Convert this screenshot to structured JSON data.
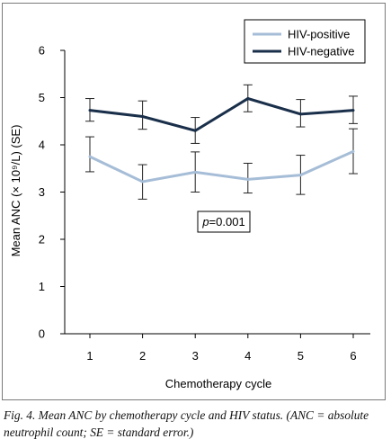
{
  "caption": "Fig. 4. Mean ANC by chemotherapy cycle and HIV status. (ANC = absolute neutrophil count; SE = standard error.)",
  "colors": {
    "hiv_positive": "#a6bdd7",
    "hiv_negative": "#1a2f4a",
    "axis": "#000000",
    "frame": "#7a7a7a"
  },
  "chart_data": {
    "type": "line",
    "title": "",
    "xlabel": "Chemotherapy cycle",
    "ylabel": "Mean ANC (× 10⁹/L) (SE)",
    "categories": [
      1,
      2,
      3,
      4,
      5,
      6
    ],
    "x_tick_labels": [
      "1",
      "2",
      "3",
      "4",
      "5",
      "6"
    ],
    "ylim": [
      0,
      6
    ],
    "y_ticks": [
      0,
      1,
      2,
      3,
      4,
      5,
      6
    ],
    "y_tick_labels": [
      "0",
      "1",
      "2",
      "3",
      "4",
      "5",
      "6"
    ],
    "grid": false,
    "legend_position": "top-right",
    "annotation": {
      "p_label": "p",
      "p_value": "=0.001"
    },
    "series": [
      {
        "name": "HIV-positive",
        "color": "#a6bdd7",
        "values": [
          3.75,
          3.22,
          3.42,
          3.27,
          3.36,
          3.86
        ],
        "error_upper": [
          4.17,
          3.58,
          3.85,
          3.61,
          3.78,
          4.34
        ],
        "error_lower": [
          3.43,
          2.85,
          3.0,
          2.98,
          2.95,
          3.39
        ]
      },
      {
        "name": "HIV-negative",
        "color": "#1a2f4a",
        "values": [
          4.73,
          4.6,
          4.3,
          4.98,
          4.65,
          4.73
        ],
        "error_upper": [
          4.98,
          4.93,
          4.58,
          5.27,
          4.96,
          5.03
        ],
        "error_lower": [
          4.5,
          4.33,
          4.03,
          4.7,
          4.38,
          4.45
        ]
      }
    ]
  }
}
